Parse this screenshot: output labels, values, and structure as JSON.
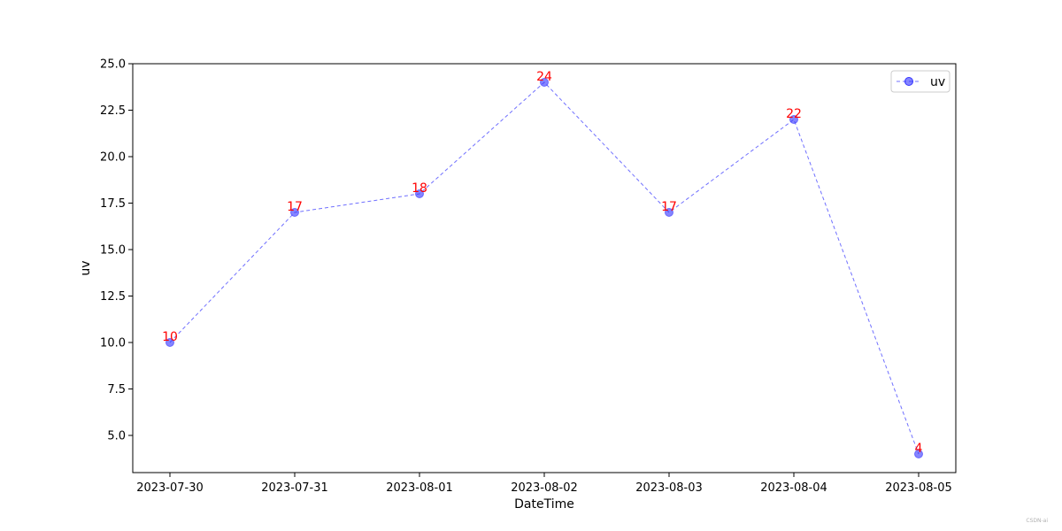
{
  "chart_data": {
    "type": "line",
    "title": "",
    "xlabel": "DateTime",
    "ylabel": "uv",
    "categories": [
      "2023-07-30",
      "2023-07-31",
      "2023-08-01",
      "2023-08-02",
      "2023-08-03",
      "2023-08-04",
      "2023-08-05"
    ],
    "series": [
      {
        "name": "uv",
        "values": [
          10,
          17,
          18,
          24,
          17,
          22,
          4
        ]
      }
    ],
    "ylim": [
      3,
      25
    ],
    "yticks": [
      5.0,
      7.5,
      10.0,
      12.5,
      15.0,
      17.5,
      20.0,
      22.5,
      25.0
    ],
    "ytick_labels": [
      "5.0",
      "7.5",
      "10.0",
      "12.5",
      "15.0",
      "17.5",
      "20.0",
      "22.5",
      "25.0"
    ],
    "data_labels": [
      "10",
      "17",
      "18",
      "24",
      "17",
      "22",
      "4"
    ],
    "grid": false,
    "legend": {
      "placement": "upper-right",
      "entries": [
        "uv"
      ]
    },
    "colors": {
      "series": "#3333ff",
      "data_label": "#ff0000",
      "axis": "#000000"
    }
  },
  "watermark": "CSDN-ai"
}
